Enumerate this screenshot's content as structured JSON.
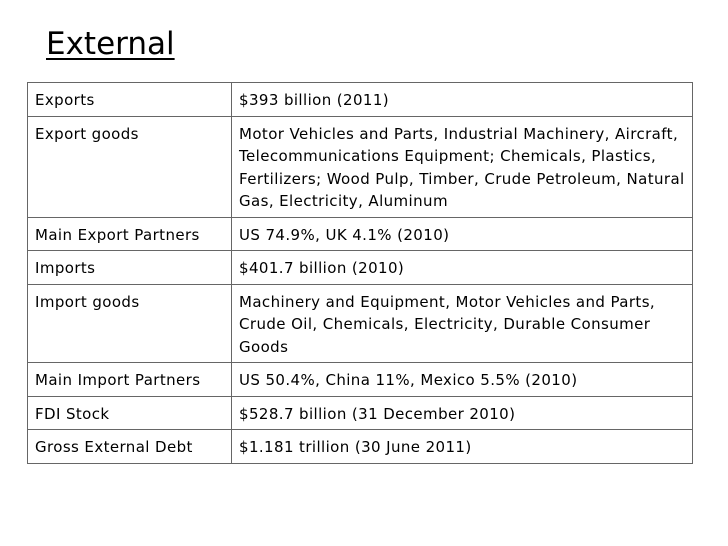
{
  "header": {
    "title": "External"
  },
  "table": {
    "rows": [
      [
        "Exports",
        "$393 billion (2011)"
      ],
      [
        "Export goods",
        "Motor Vehicles and Parts, Industrial Machinery, Aircraft, Telecommunications Equipment; Chemicals, Plastics, Fertilizers; Wood Pulp, Timber, Crude Petroleum, Natural Gas, Electricity, Aluminum"
      ],
      [
        "Main Export Partners",
        "US 74.9%, UK 4.1% (2010)"
      ],
      [
        "Imports",
        "$401.7 billion (2010)"
      ],
      [
        "Import goods",
        "Machinery and Equipment, Motor Vehicles and Parts, Crude Oil, Chemicals, Electricity, Durable Consumer Goods"
      ],
      [
        "Main Import Partners",
        "US 50.4%, China 11%, Mexico 5.5% (2010)"
      ],
      [
        "FDI Stock",
        "$528.7 billion (31 December 2010)"
      ],
      [
        "Gross External Debt",
        "$1.181 trillion (30 June 2011)"
      ]
    ]
  }
}
